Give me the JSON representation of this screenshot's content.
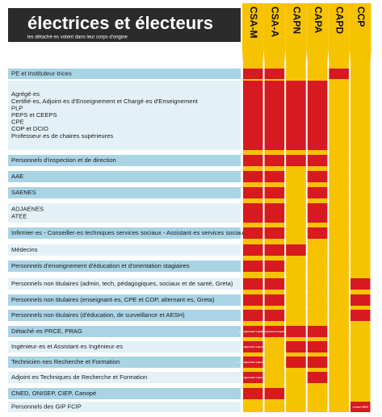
{
  "header": {
    "title": "électrices et électeurs",
    "subtitle": "les détaché·es votent dans leur corps d'origine"
  },
  "colors": {
    "on": "#d71920",
    "off": "#f7c300"
  },
  "columns": [
    "CSA-M",
    "CSA-A",
    "CAPN",
    "CAPA",
    "CAPD",
    "CCP"
  ],
  "rows": [
    {
      "lines": [
        "PE et Instituteur·trices"
      ],
      "cells": [
        true,
        true,
        false,
        false,
        true,
        false
      ]
    },
    {
      "lines": [
        "Agrégé·es",
        "Certifié·es, Adjoint·es d'Enseignement et Chargé·es d'Enseignement",
        "PLP",
        "PEPS  et CEEPS",
        "CPE",
        "COP et DCIO",
        "Professeur·es de chaires supérieures"
      ],
      "cells": [
        true,
        true,
        true,
        true,
        false,
        false
      ]
    },
    {
      "lines": [
        "Personnels d'inspection et de direction"
      ],
      "cells": [
        true,
        true,
        true,
        true,
        false,
        false
      ]
    },
    {
      "lines": [
        "AAE"
      ],
      "cells": [
        true,
        true,
        false,
        true,
        false,
        false
      ]
    },
    {
      "lines": [
        "SAENES"
      ],
      "cells": [
        true,
        true,
        false,
        true,
        false,
        false
      ]
    },
    {
      "lines": [
        "ADJAENES",
        "ATEE"
      ],
      "cells": [
        true,
        true,
        false,
        true,
        false,
        false
      ]
    },
    {
      "lines": [
        "Infirmier·es - Conseiller·es techniques services sociaux - Assistant·es services sociaux"
      ],
      "cells": [
        true,
        true,
        false,
        true,
        false,
        false
      ]
    },
    {
      "lines": [
        "Médecins"
      ],
      "cells": [
        true,
        true,
        true,
        false,
        false,
        false
      ]
    },
    {
      "lines": [
        "Personnels d'enseignement d'éducation et d'orientation stagiaires"
      ],
      "cells": [
        true,
        true,
        false,
        false,
        false,
        false
      ]
    },
    {
      "lines": [
        "Personnels non titulaires  (admin, tech, pédagogiques, sociaux et de santé, Greta)"
      ],
      "cells": [
        true,
        true,
        false,
        false,
        false,
        true
      ]
    },
    {
      "lines": [
        "Personnels non titulaires  (enseignant·es, CPE et COP, alternant·es, Greta)"
      ],
      "cells": [
        true,
        true,
        false,
        false,
        false,
        true
      ]
    },
    {
      "lines": [
        "Personnels non titulaires (d'éducation, de surveillance et AESH)"
      ],
      "cells": [
        true,
        true,
        false,
        false,
        false,
        true
      ]
    },
    {
      "lines": [
        "Détaché·es PRCE, PRAG"
      ],
      "cells": [
        {
          "on": true,
          "text": "enseignement supérieur"
        },
        {
          "on": true,
          "text": "enseignement supérieur"
        },
        true,
        true,
        false,
        false
      ]
    },
    {
      "lines": [
        "Ingénieur·es et Assistant·es Ingénieur·es"
      ],
      "cells": [
        {
          "on": true,
          "text": "enseignement supérieur"
        },
        false,
        true,
        true,
        false,
        false
      ]
    },
    {
      "lines": [
        "Technicien·nes Recherche et Formation"
      ],
      "cells": [
        {
          "on": true,
          "text": "enseignement supérieur"
        },
        false,
        true,
        true,
        false,
        false
      ]
    },
    {
      "lines": [
        "Adjoint·es Techniques de Recherche et Formation"
      ],
      "cells": [
        {
          "on": true,
          "text": "enseignement supérieur"
        },
        false,
        false,
        true,
        false,
        false
      ]
    },
    {
      "lines": [
        "CNED, ONISEP, CIEP, Canopé"
      ],
      "cells": [
        true,
        true,
        false,
        false,
        false,
        false
      ]
    },
    {
      "lines": [
        "Personnels des GIP FCIP"
      ],
      "cells": [
        false,
        false,
        false,
        false,
        false,
        {
          "on": true,
          "text": "contact SNES"
        }
      ]
    }
  ]
}
